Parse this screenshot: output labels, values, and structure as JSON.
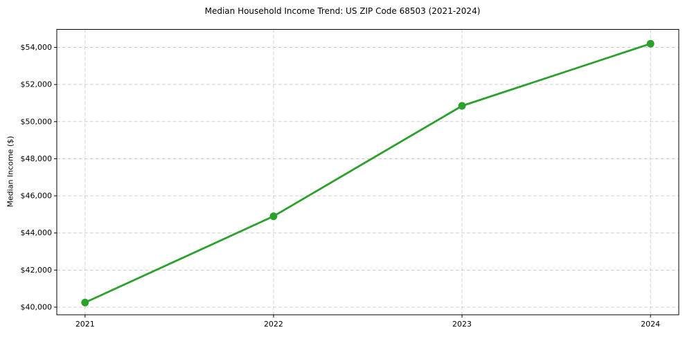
{
  "chart_data": {
    "type": "line",
    "title": "Median Household Income Trend: US ZIP Code 68503 (2021-2024)",
    "xlabel": "",
    "ylabel": "Median Income ($)",
    "x": [
      2021,
      2022,
      2023,
      2024
    ],
    "x_tick_labels": [
      "2021",
      "2022",
      "2023",
      "2024"
    ],
    "series": [
      {
        "name": "Median Household Income",
        "values": [
          40250,
          44900,
          50850,
          54200
        ]
      }
    ],
    "y_ticks": [
      40000,
      42000,
      44000,
      46000,
      48000,
      50000,
      52000,
      54000
    ],
    "y_tick_labels": [
      "$40,000",
      "$42,000",
      "$44,000",
      "$46,000",
      "$48,000",
      "$50,000",
      "$52,000",
      "$54,000"
    ],
    "xlim": [
      2020.85,
      2024.15
    ],
    "ylim": [
      39590,
      54970
    ],
    "grid": true,
    "grid_style": "dashed",
    "legend": "none",
    "colors": {
      "line": "#2ca02c",
      "marker": "#2ca02c",
      "grid": "#cfcfcf",
      "spine": "#000000",
      "background": "#ffffff",
      "text": "#000000"
    }
  }
}
